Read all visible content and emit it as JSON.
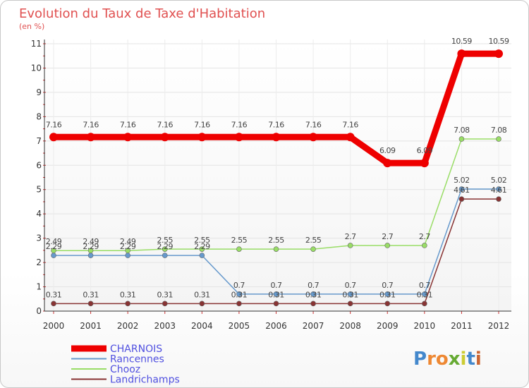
{
  "chart_data": {
    "type": "line",
    "title": "Evolution du Taux de Taxe d'Habitation",
    "subtitle": "(en %)",
    "xlabel": "",
    "ylabel": "",
    "ylim": [
      0,
      11
    ],
    "y_ticks": [
      "0",
      "1",
      "2",
      "3",
      "4",
      "5",
      "6",
      "7",
      "8",
      "9",
      "10",
      "11"
    ],
    "categories": [
      "2000",
      "2001",
      "2002",
      "2003",
      "2004",
      "2005",
      "2006",
      "2007",
      "2008",
      "2009",
      "2010",
      "2011",
      "2012"
    ],
    "series": [
      {
        "name": "CHARNOIS",
        "color": "#ee0000",
        "values": [
          7.16,
          7.16,
          7.16,
          7.16,
          7.16,
          7.16,
          7.16,
          7.16,
          7.16,
          6.09,
          6.09,
          10.59,
          10.59
        ],
        "labels": [
          "7.16",
          "7.16",
          "7.16",
          "7.16",
          "7.16",
          "7.16",
          "7.16",
          "7.16",
          "7.16",
          "6.09",
          "6.09",
          "10.59",
          "10.59"
        ]
      },
      {
        "name": "Rancennes",
        "color": "#6699cc",
        "values": [
          2.29,
          2.29,
          2.29,
          2.29,
          2.29,
          0.7,
          0.7,
          0.7,
          0.7,
          0.7,
          0.7,
          5.02,
          5.02
        ],
        "labels": [
          "2.29",
          "2.29",
          "2.29",
          "2.29",
          "2.29",
          "0.7",
          "0.7",
          "0.7",
          "0.7",
          "0.7",
          "0.7",
          "5.02",
          "5.02"
        ]
      },
      {
        "name": "Chooz",
        "color": "#99dd66",
        "values": [
          2.49,
          2.49,
          2.49,
          2.55,
          2.55,
          2.55,
          2.55,
          2.55,
          2.7,
          2.7,
          2.7,
          7.08,
          7.08
        ],
        "labels": [
          "2.49",
          "2.49",
          "2.49",
          "2.55",
          "2.55",
          "2.55",
          "2.55",
          "2.55",
          "2.7",
          "2.7",
          "2.7",
          "7.08",
          "7.08"
        ]
      },
      {
        "name": "Landrichamps",
        "color": "#883333",
        "values": [
          0.31,
          0.31,
          0.31,
          0.31,
          0.31,
          0.31,
          0.31,
          0.31,
          0.31,
          0.31,
          0.31,
          4.61,
          4.61
        ],
        "labels": [
          "0.31",
          "0.31",
          "0.31",
          "0.31",
          "0.31",
          "0.31",
          "0.31",
          "0.31",
          "0.31",
          "0.31",
          "0.31",
          "4.61",
          "4.61"
        ]
      }
    ],
    "legend_position": "bottom-left"
  },
  "brand": {
    "letters": [
      "P",
      "r",
      "o",
      "x",
      "i",
      "t",
      "i"
    ],
    "colors": [
      "#4488cc",
      "#ee8833",
      "#ee8833",
      "#66aa33",
      "#cccc33",
      "#4488cc",
      "#cc6633"
    ]
  }
}
